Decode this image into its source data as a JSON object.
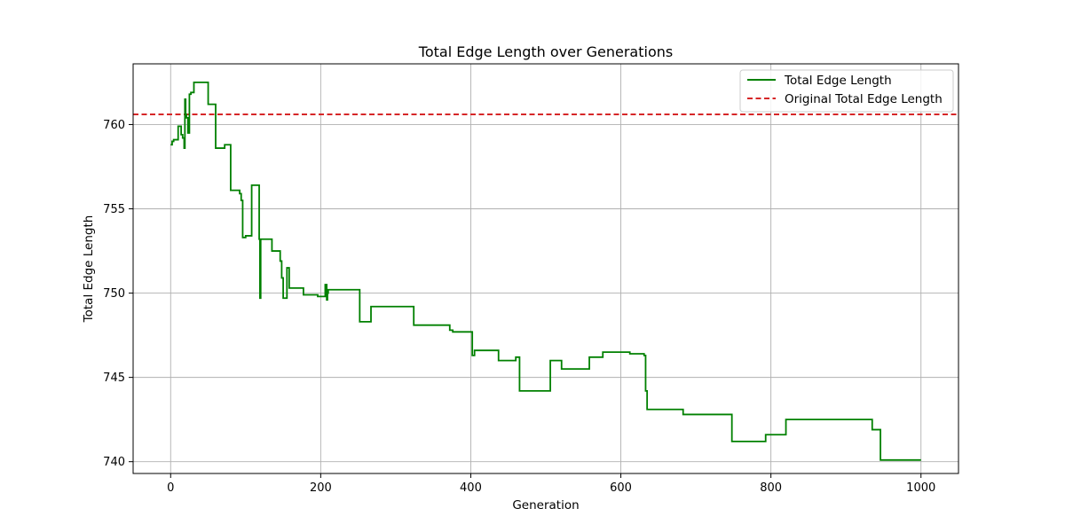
{
  "chart_data": {
    "type": "line",
    "title": "Total Edge Length over Generations",
    "xlabel": "Generation",
    "ylabel": "Total Edge Length",
    "xlim": [
      -50,
      1050
    ],
    "ylim": [
      739.3,
      763.6
    ],
    "xticks": [
      0,
      200,
      400,
      600,
      800,
      1000
    ],
    "yticks": [
      740,
      745,
      750,
      755,
      760
    ],
    "grid": true,
    "legend_position": "top-right",
    "hlines": [
      {
        "name": "Original Total Edge Length",
        "y": 760.6,
        "color": "#d62728",
        "style": "dashed"
      }
    ],
    "series": [
      {
        "name": "Total Edge Length",
        "color": "#008000",
        "style": "step",
        "x": [
          0,
          2,
          4,
          10,
          14,
          16,
          18,
          19,
          20,
          21,
          23,
          25,
          27,
          29,
          31,
          37,
          39,
          50,
          52,
          60,
          62,
          72,
          74,
          80,
          82,
          92,
          94,
          96,
          100,
          102,
          106,
          108,
          116,
          118,
          119,
          120,
          122,
          135,
          137,
          146,
          148,
          150,
          152,
          155,
          158,
          160,
          162,
          177,
          179,
          196,
          198,
          204,
          206,
          208,
          209,
          210,
          212,
          252,
          254,
          267,
          269,
          324,
          326,
          372,
          374,
          376,
          378,
          402,
          403,
          405,
          407,
          437,
          439,
          447,
          449,
          460,
          462,
          465,
          467,
          506,
          508,
          521,
          523,
          558,
          560,
          576,
          578,
          612,
          614,
          631,
          633,
          634,
          635,
          637,
          683,
          685,
          748,
          750,
          793,
          795,
          820,
          822,
          935,
          937,
          946,
          948,
          1000
        ],
        "y": [
          758.8,
          759.0,
          759.1,
          759.9,
          759.4,
          759.2,
          758.6,
          761.5,
          760.6,
          760.4,
          759.5,
          761.8,
          761.9,
          761.9,
          762.5,
          762.5,
          762.5,
          761.2,
          761.2,
          758.6,
          758.6,
          758.8,
          758.8,
          756.1,
          756.1,
          755.9,
          755.5,
          753.3,
          753.4,
          753.4,
          753.4,
          756.4,
          756.4,
          753.2,
          749.7,
          753.2,
          753.2,
          752.5,
          752.5,
          751.9,
          750.9,
          749.7,
          749.7,
          751.5,
          750.3,
          750.3,
          750.3,
          749.9,
          749.9,
          749.8,
          749.8,
          749.8,
          750.5,
          749.6,
          750.0,
          750.2,
          750.2,
          748.3,
          748.3,
          749.2,
          749.2,
          748.1,
          748.1,
          747.8,
          747.8,
          747.7,
          747.7,
          746.3,
          746.3,
          746.6,
          746.6,
          746.0,
          746.0,
          746.0,
          746.0,
          746.2,
          746.2,
          744.2,
          744.2,
          746.0,
          746.0,
          745.5,
          745.5,
          746.2,
          746.2,
          746.5,
          746.5,
          746.4,
          746.4,
          746.3,
          744.2,
          744.2,
          743.1,
          743.1,
          742.8,
          742.8,
          741.2,
          741.2,
          741.6,
          741.6,
          742.5,
          742.5,
          741.9,
          741.9,
          740.1,
          740.1,
          740.1
        ]
      }
    ]
  }
}
